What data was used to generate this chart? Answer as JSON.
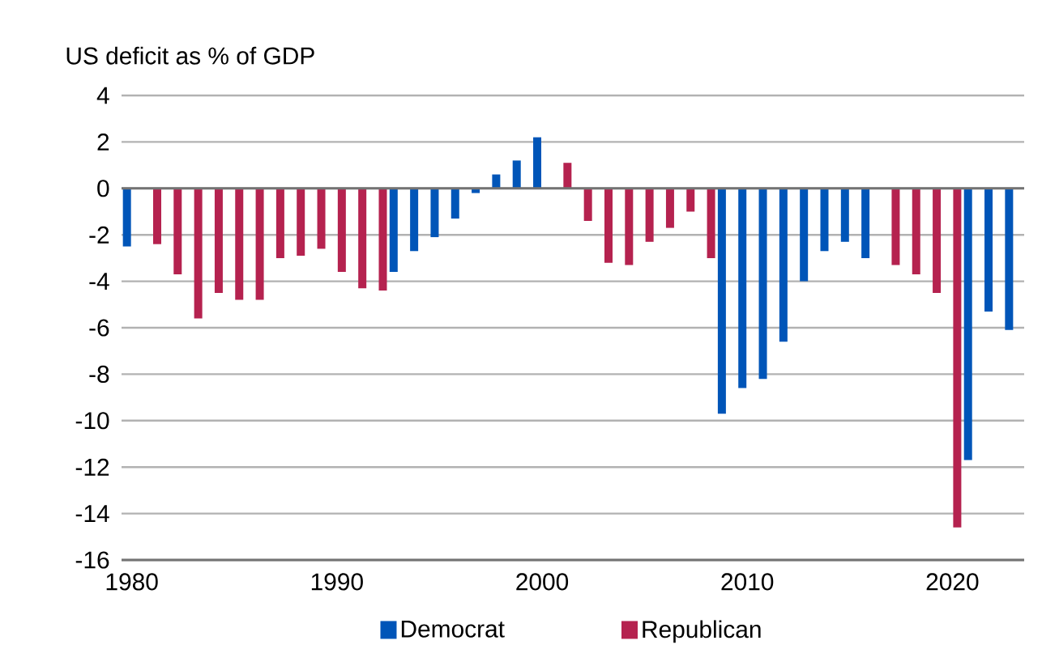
{
  "chart_data": {
    "type": "bar",
    "ylabel": "US deficit as % of GDP",
    "x": [
      1980,
      1981,
      1982,
      1983,
      1984,
      1985,
      1986,
      1987,
      1988,
      1989,
      1990,
      1991,
      1992,
      1993,
      1994,
      1995,
      1996,
      1997,
      1998,
      1999,
      2000,
      2001,
      2002,
      2003,
      2004,
      2005,
      2006,
      2007,
      2008,
      2009,
      2010,
      2011,
      2012,
      2013,
      2014,
      2015,
      2016,
      2017,
      2018,
      2019,
      2020,
      2021,
      2022,
      2023
    ],
    "series": [
      {
        "name": "Democrat",
        "color": "#0055b8",
        "values": [
          -2.5,
          null,
          null,
          null,
          null,
          null,
          null,
          null,
          null,
          null,
          null,
          null,
          null,
          -3.6,
          -2.7,
          -2.1,
          -1.3,
          -0.2,
          0.6,
          1.2,
          2.2,
          null,
          null,
          null,
          null,
          null,
          null,
          null,
          null,
          -9.7,
          -8.6,
          -8.2,
          -6.6,
          -4.0,
          -2.7,
          -2.3,
          -3.0,
          null,
          null,
          null,
          null,
          -11.7,
          -5.3,
          -6.1
        ]
      },
      {
        "name": "Republican",
        "color": "#b5224f",
        "values": [
          null,
          -2.4,
          -3.7,
          -5.6,
          -4.5,
          -4.8,
          -4.8,
          -3.0,
          -2.9,
          -2.6,
          -3.6,
          -4.3,
          -4.4,
          null,
          null,
          null,
          null,
          null,
          null,
          null,
          null,
          1.1,
          -1.4,
          -3.2,
          -3.3,
          -2.3,
          -1.7,
          -1.0,
          -3.0,
          null,
          null,
          null,
          null,
          null,
          null,
          null,
          null,
          -3.3,
          -3.7,
          -4.5,
          -14.6,
          null,
          null,
          null
        ]
      }
    ],
    "xlim": [
      1979.5,
      2023.5
    ],
    "xticks": [
      1980,
      1990,
      2000,
      2010,
      2020
    ],
    "ylim": [
      -16,
      4
    ],
    "yticks": [
      -16,
      -14,
      -12,
      -10,
      -8,
      -6,
      -4,
      -2,
      0,
      2,
      4
    ],
    "grid": "y",
    "legend": "bottom"
  }
}
